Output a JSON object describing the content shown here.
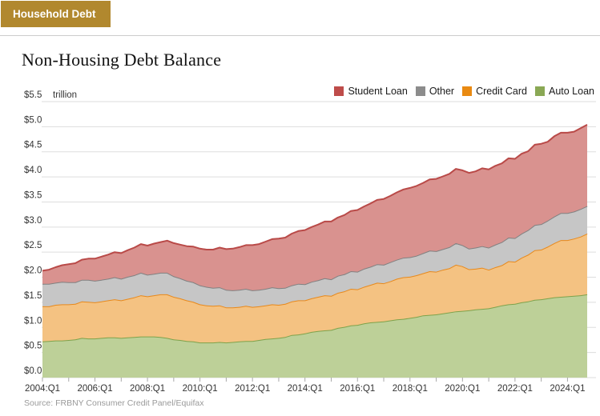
{
  "header": {
    "tab_label": "Household Debt"
  },
  "footer": {
    "source": "Source: FRBNY Consumer Credit Panel/Equifax"
  },
  "colors": {
    "tab_bg": "#b1882e",
    "grid": "#dddddd",
    "tick": "#a8a8a8",
    "axis_text": "#333333",
    "legend_swatches": {
      "student_loan": "#be4c4a",
      "other": "#8c8c8c",
      "credit_card": "#e98a12",
      "auto_loan": "#8aa855"
    },
    "series_lines": {
      "Auto Loan": "#7ea24b",
      "Credit Card": "#e8891b",
      "Other": "#818181",
      "Student Loan": "#b94a48"
    },
    "series_fills": {
      "Auto Loan": "#bdd098",
      "Credit Card": "#f4c282",
      "Other": "#c6c6c6",
      "Student Loan": "#d9928f"
    }
  },
  "chart_data": {
    "type": "area",
    "stacked": true,
    "title": "Non-Housing Debt Balance",
    "unit_label": "trillion",
    "y_tick_prefix": "$",
    "ylim": [
      0.0,
      5.5
    ],
    "y_tick_step": 0.5,
    "x_unit": "quarter",
    "x_start": "2004:Q1",
    "x_end": "2024:Q4",
    "x_tick_labels": [
      "2004:Q1",
      "2006:Q1",
      "2008:Q1",
      "2010:Q1",
      "2012:Q1",
      "2014:Q1",
      "2016:Q1",
      "2018:Q1",
      "2020:Q1",
      "2022:Q1",
      "2024:Q1"
    ],
    "legend_position": "top-right",
    "legend_order": [
      "Student Loan",
      "Other",
      "Credit Card",
      "Auto Loan"
    ],
    "stack_order_bottom_to_top": [
      "Auto Loan",
      "Credit Card",
      "Other",
      "Student Loan"
    ],
    "series": [
      {
        "name": "Auto Loan",
        "values": [
          0.72,
          0.73,
          0.74,
          0.74,
          0.75,
          0.76,
          0.79,
          0.78,
          0.78,
          0.79,
          0.8,
          0.8,
          0.79,
          0.8,
          0.81,
          0.82,
          0.82,
          0.82,
          0.81,
          0.79,
          0.76,
          0.75,
          0.73,
          0.72,
          0.7,
          0.7,
          0.7,
          0.71,
          0.7,
          0.71,
          0.72,
          0.73,
          0.73,
          0.75,
          0.77,
          0.78,
          0.79,
          0.81,
          0.85,
          0.86,
          0.88,
          0.91,
          0.93,
          0.94,
          0.95,
          0.99,
          1.01,
          1.04,
          1.05,
          1.08,
          1.1,
          1.11,
          1.12,
          1.14,
          1.16,
          1.17,
          1.19,
          1.21,
          1.24,
          1.25,
          1.26,
          1.28,
          1.3,
          1.32,
          1.33,
          1.34,
          1.36,
          1.37,
          1.38,
          1.41,
          1.44,
          1.46,
          1.47,
          1.5,
          1.52,
          1.55,
          1.56,
          1.58,
          1.6,
          1.61,
          1.62,
          1.63,
          1.64,
          1.66
        ]
      },
      {
        "name": "Credit Card",
        "values": [
          0.7,
          0.69,
          0.71,
          0.72,
          0.71,
          0.71,
          0.73,
          0.73,
          0.72,
          0.73,
          0.74,
          0.76,
          0.75,
          0.77,
          0.79,
          0.82,
          0.8,
          0.82,
          0.85,
          0.87,
          0.85,
          0.83,
          0.81,
          0.79,
          0.76,
          0.74,
          0.73,
          0.73,
          0.7,
          0.69,
          0.69,
          0.7,
          0.68,
          0.67,
          0.67,
          0.68,
          0.66,
          0.66,
          0.67,
          0.68,
          0.66,
          0.67,
          0.68,
          0.7,
          0.68,
          0.7,
          0.71,
          0.73,
          0.71,
          0.73,
          0.75,
          0.78,
          0.76,
          0.78,
          0.81,
          0.83,
          0.82,
          0.83,
          0.84,
          0.87,
          0.85,
          0.87,
          0.88,
          0.93,
          0.89,
          0.82,
          0.81,
          0.82,
          0.77,
          0.79,
          0.8,
          0.86,
          0.84,
          0.89,
          0.93,
          0.99,
          0.99,
          1.03,
          1.08,
          1.13,
          1.12,
          1.14,
          1.17,
          1.21
        ]
      },
      {
        "name": "Other",
        "values": [
          0.45,
          0.45,
          0.44,
          0.45,
          0.44,
          0.43,
          0.43,
          0.44,
          0.43,
          0.43,
          0.43,
          0.44,
          0.43,
          0.44,
          0.44,
          0.45,
          0.43,
          0.43,
          0.43,
          0.43,
          0.41,
          0.4,
          0.39,
          0.39,
          0.38,
          0.37,
          0.36,
          0.36,
          0.35,
          0.34,
          0.34,
          0.34,
          0.33,
          0.33,
          0.33,
          0.34,
          0.33,
          0.32,
          0.32,
          0.33,
          0.32,
          0.33,
          0.33,
          0.34,
          0.33,
          0.34,
          0.34,
          0.35,
          0.35,
          0.36,
          0.36,
          0.37,
          0.37,
          0.38,
          0.38,
          0.39,
          0.39,
          0.39,
          0.4,
          0.41,
          0.41,
          0.41,
          0.42,
          0.43,
          0.42,
          0.41,
          0.42,
          0.43,
          0.44,
          0.45,
          0.46,
          0.47,
          0.47,
          0.48,
          0.49,
          0.5,
          0.51,
          0.52,
          0.53,
          0.54,
          0.54,
          0.54,
          0.55,
          0.55
        ]
      },
      {
        "name": "Student Loan",
        "values": [
          0.26,
          0.28,
          0.31,
          0.33,
          0.36,
          0.38,
          0.4,
          0.42,
          0.44,
          0.46,
          0.48,
          0.5,
          0.51,
          0.53,
          0.55,
          0.57,
          0.58,
          0.6,
          0.61,
          0.64,
          0.66,
          0.67,
          0.69,
          0.71,
          0.73,
          0.74,
          0.76,
          0.79,
          0.81,
          0.83,
          0.85,
          0.87,
          0.9,
          0.91,
          0.94,
          0.96,
          0.99,
          1.0,
          1.03,
          1.05,
          1.08,
          1.09,
          1.11,
          1.13,
          1.15,
          1.16,
          1.18,
          1.2,
          1.23,
          1.24,
          1.26,
          1.28,
          1.31,
          1.32,
          1.34,
          1.36,
          1.38,
          1.39,
          1.4,
          1.42,
          1.44,
          1.45,
          1.46,
          1.48,
          1.49,
          1.51,
          1.52,
          1.55,
          1.56,
          1.57,
          1.57,
          1.58,
          1.58,
          1.59,
          1.57,
          1.6,
          1.6,
          1.57,
          1.6,
          1.6,
          1.6,
          1.59,
          1.61,
          1.62
        ]
      }
    ]
  }
}
